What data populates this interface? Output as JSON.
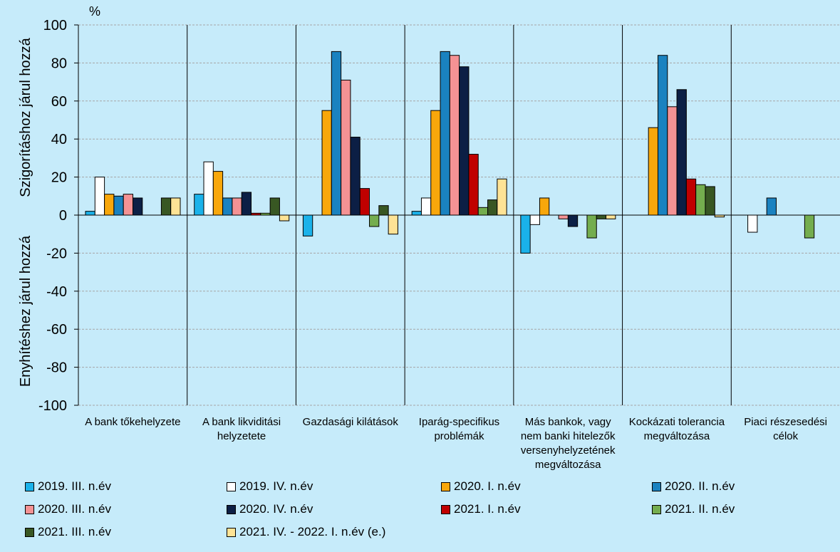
{
  "chart_data": {
    "type": "bar",
    "unit_label": "%",
    "ylabel_top": "Szigorításhoz járul hozzá",
    "ylabel_bottom": "Enyhítéshez járul hozzá",
    "xlabel": "",
    "ylim": [
      -100,
      100
    ],
    "yticks": [
      -100,
      -80,
      -60,
      -40,
      -20,
      0,
      20,
      40,
      60,
      80,
      100
    ],
    "grid": true,
    "legend_position": "bottom",
    "categories": [
      "A bank tőkehelyzete",
      "A bank likviditási helyzetete",
      "Gazdasági kilátások",
      "Iparág-specifikus problémák",
      "Más bankok, vagy nem banki hitelezők versenyhelyzetének megváltozása",
      "Kockázati tolerancia megváltozása",
      "Piaci részesedési célok"
    ],
    "category_lines": [
      [
        "A bank tőkehelyzete"
      ],
      [
        "A bank likviditási",
        "helyzetete"
      ],
      [
        "Gazdasági kilátások"
      ],
      [
        "Iparág-specifikus",
        "problémák"
      ],
      [
        "Más bankok, vagy",
        "nem banki hitelezők",
        "versenyhelyzetének",
        "megváltozása"
      ],
      [
        "Kockázati tolerancia",
        "megváltozása"
      ],
      [
        "Piaci részesedési",
        "célok"
      ]
    ],
    "series": [
      {
        "name": "2019. III. n.év",
        "color": "#1ab2ea",
        "values": [
          2,
          11,
          -11,
          2,
          -20,
          0,
          0
        ]
      },
      {
        "name": "2019. IV. n.év",
        "color": "#ffffff",
        "values": [
          20,
          28,
          0,
          9,
          -5,
          0,
          -9
        ]
      },
      {
        "name": "2020. I. n.év",
        "color": "#f8a70b",
        "values": [
          11,
          23,
          55,
          55,
          9,
          46,
          0
        ]
      },
      {
        "name": "2020. II. n.év",
        "color": "#1a82c0",
        "values": [
          10,
          9,
          86,
          86,
          0,
          84,
          9
        ]
      },
      {
        "name": "2020. III. n.év",
        "color": "#f49294",
        "values": [
          11,
          9,
          71,
          84,
          -2,
          57,
          0
        ]
      },
      {
        "name": "2020. IV. n.év",
        "color": "#0c1f45",
        "values": [
          9,
          12,
          41,
          78,
          -6,
          66,
          0
        ]
      },
      {
        "name": "2021. I. n.év",
        "color": "#c00000",
        "values": [
          0,
          1,
          14,
          32,
          0,
          19,
          0
        ]
      },
      {
        "name": "2021. II. n.év",
        "color": "#74ad4e",
        "values": [
          0,
          1,
          -6,
          4,
          -12,
          16,
          -12
        ]
      },
      {
        "name": "2021. III. n.év",
        "color": "#385723",
        "values": [
          9,
          9,
          5,
          8,
          -2,
          15,
          0
        ]
      },
      {
        "name": "2021. IV. - 2022. I. n.év (e.)",
        "color": "#fee395",
        "values": [
          9,
          -3,
          -10,
          19,
          -2,
          -1,
          0
        ]
      }
    ]
  }
}
